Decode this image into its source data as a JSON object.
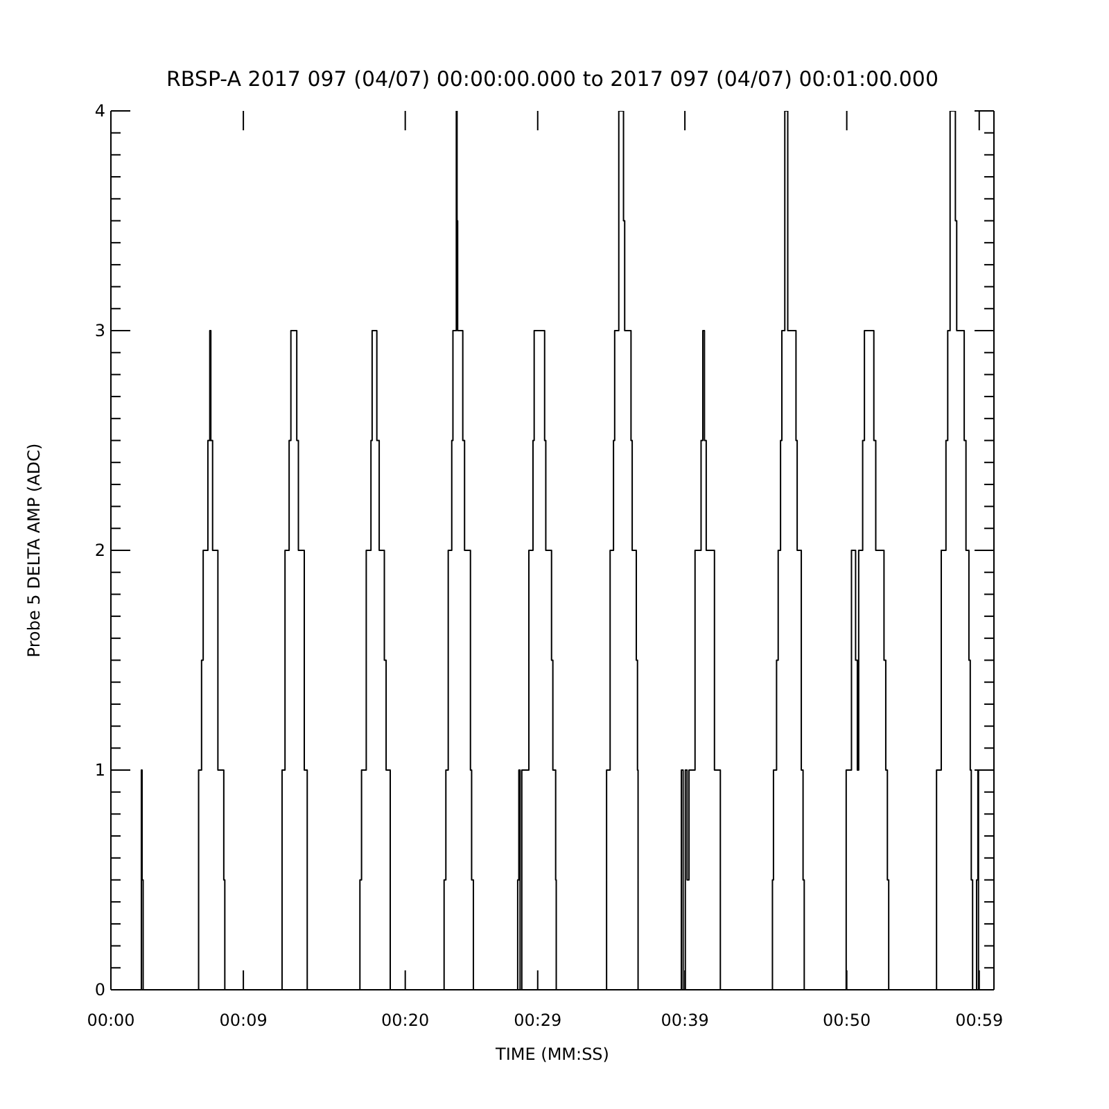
{
  "chart_data": {
    "type": "step",
    "title": "RBSP-A 2017 097 (04/07) 00:00:00.000 to 2017 097 (04/07) 00:01:00.000",
    "xlabel": "TIME (MM:SS)",
    "ylabel": "Probe 5 DELTA AMP (ADC)",
    "xlim": [
      0,
      60
    ],
    "xticks": [
      {
        "value": 0,
        "label": "00:00"
      },
      {
        "value": 9,
        "label": "00:09"
      },
      {
        "value": 20,
        "label": "00:20"
      },
      {
        "value": 29,
        "label": "00:29"
      },
      {
        "value": 39,
        "label": "00:39"
      },
      {
        "value": 50,
        "label": "00:50"
      },
      {
        "value": 59,
        "label": "00:59"
      }
    ],
    "ylim": [
      0,
      4
    ],
    "yticks": [
      0,
      {
        "value": 0.1,
        "label": null
      },
      {
        "value": 0.2,
        "label": null
      },
      {
        "value": 0.3,
        "label": null
      },
      {
        "value": 0.4,
        "label": null
      },
      {
        "value": 0.5,
        "label": null
      },
      {
        "value": 0.6,
        "label": null
      },
      {
        "value": 0.7,
        "label": null
      },
      {
        "value": 0.8,
        "label": null
      },
      {
        "value": 0.9,
        "label": null
      },
      1,
      {
        "value": 1.1,
        "label": null
      },
      {
        "value": 1.2,
        "label": null
      },
      {
        "value": 1.3,
        "label": null
      },
      {
        "value": 1.4,
        "label": null
      },
      {
        "value": 1.5,
        "label": null
      },
      {
        "value": 1.6,
        "label": null
      },
      {
        "value": 1.7,
        "label": null
      },
      {
        "value": 1.8,
        "label": null
      },
      {
        "value": 1.9,
        "label": null
      },
      2,
      {
        "value": 2.1,
        "label": null
      },
      {
        "value": 2.2,
        "label": null
      },
      {
        "value": 2.3,
        "label": null
      },
      {
        "value": 2.4,
        "label": null
      },
      {
        "value": 2.5,
        "label": null
      },
      {
        "value": 2.6,
        "label": null
      },
      {
        "value": 2.7,
        "label": null
      },
      {
        "value": 2.8,
        "label": null
      },
      {
        "value": 2.9,
        "label": null
      },
      3,
      {
        "value": 3.1,
        "label": null
      },
      {
        "value": 3.2,
        "label": null
      },
      {
        "value": 3.3,
        "label": null
      },
      {
        "value": 3.4,
        "label": null
      },
      {
        "value": 3.5,
        "label": null
      },
      {
        "value": 3.6,
        "label": null
      },
      {
        "value": 3.7,
        "label": null
      },
      {
        "value": 3.8,
        "label": null
      },
      {
        "value": 3.9,
        "label": null
      },
      4
    ],
    "x": [
      0,
      2.07,
      2.12,
      2.19,
      5.96,
      6.16,
      6.27,
      6.59,
      6.72,
      6.79,
      6.91,
      7.27,
      7.67,
      7.74,
      11.63,
      11.83,
      12.11,
      12.23,
      12.63,
      12.74,
      13.14,
      13.34,
      16.92,
      17.03,
      17.35,
      17.67,
      17.75,
      18.07,
      18.23,
      18.58,
      18.7,
      18.98,
      22.64,
      22.76,
      22.92,
      23.16,
      23.24,
      23.47,
      23.52,
      23.56,
      23.91,
      24.03,
      24.43,
      24.51,
      24.63,
      27.64,
      27.72,
      27.8,
      27.92,
      28.4,
      28.68,
      28.76,
      29.47,
      29.55,
      29.94,
      30.03,
      30.22,
      30.26,
      33.68,
      33.92,
      34.15,
      34.23,
      34.51,
      34.83,
      34.91,
      35.34,
      35.42,
      35.7,
      35.78,
      35.82,
      38.76,
      38.88,
      39.03,
      39.15,
      39.28,
      39.69,
      40.1,
      40.22,
      40.33,
      40.45,
      41.01,
      41.41,
      44.95,
      45.02,
      45.23,
      45.34,
      45.5,
      45.59,
      45.79,
      45.99,
      46.55,
      46.63,
      46.91,
      47.03,
      47.11,
      49.96,
      50.32,
      50.6,
      50.72,
      50.81,
      51.08,
      51.2,
      51.84,
      51.97,
      52.53,
      52.65,
      52.76,
      52.85,
      56.1,
      56.42,
      56.74,
      56.86,
      57.02,
      57.38,
      57.47,
      57.98,
      58.1,
      58.3,
      58.39,
      58.46,
      58.55,
      58.82,
      58.91,
      58.95,
      60
    ],
    "series": [
      {
        "color": "#000000",
        "values": [
          0,
          1,
          0.5,
          0,
          1,
          1.5,
          2,
          2.5,
          3,
          2.5,
          2,
          1,
          0.5,
          0,
          1,
          2,
          2.5,
          3,
          2.5,
          2,
          1,
          0,
          0.5,
          1,
          2,
          2.5,
          3,
          2.5,
          2,
          1.5,
          1,
          0,
          0.5,
          1,
          2,
          2.5,
          3,
          4,
          3.5,
          3,
          2.5,
          2,
          1,
          0.5,
          0,
          0.5,
          1,
          0,
          1,
          2,
          2.5,
          3,
          2.5,
          2,
          1.5,
          1,
          0.5,
          0,
          1,
          2,
          2.5,
          3,
          4,
          3.5,
          3,
          2.5,
          2,
          1.5,
          1,
          0,
          1,
          0,
          1,
          0.5,
          1,
          2,
          2.5,
          3,
          2.5,
          2,
          1,
          0,
          0.5,
          1,
          1.5,
          2,
          2.5,
          3,
          4,
          3,
          2.5,
          2,
          1,
          0.5,
          0,
          1,
          2,
          1.5,
          1,
          2,
          2.5,
          3,
          2.5,
          2,
          1.5,
          1,
          0.5,
          0,
          1,
          2,
          2.5,
          3,
          4,
          3.5,
          3,
          2.5,
          2,
          1.5,
          1,
          0.5,
          0,
          0.5,
          1,
          0,
          0
        ]
      }
    ]
  }
}
